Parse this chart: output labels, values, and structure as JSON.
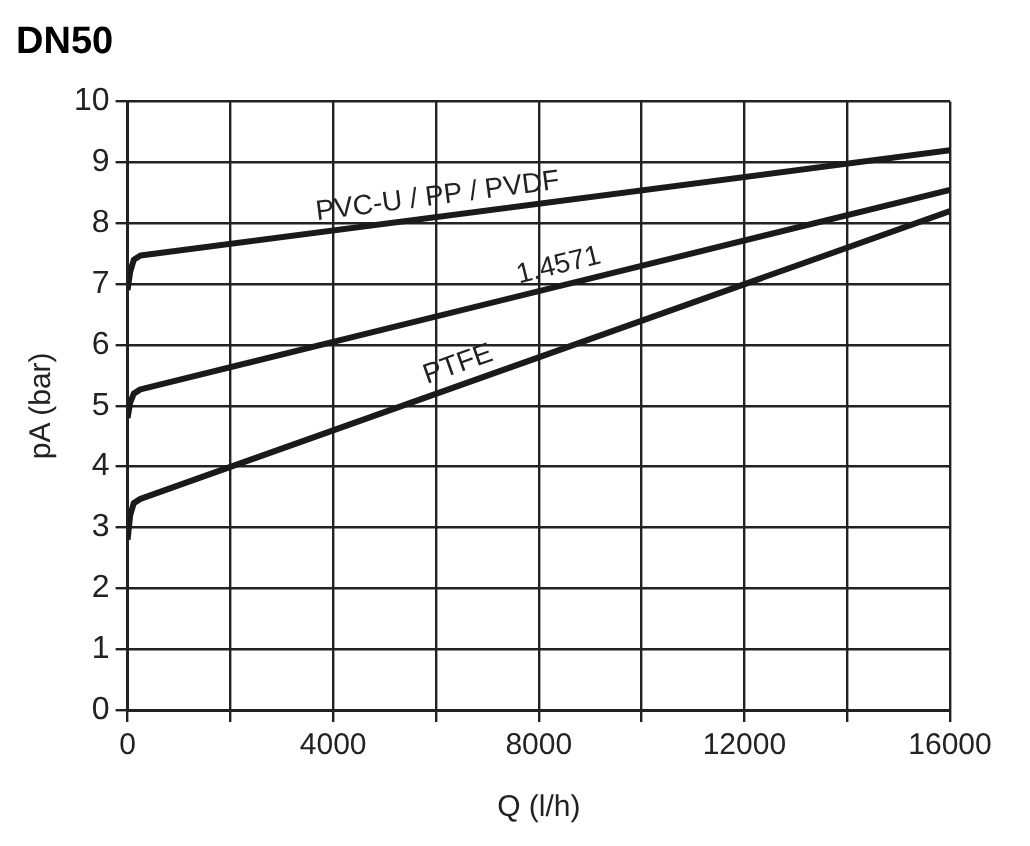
{
  "chart_data": {
    "type": "line",
    "title": "DN50",
    "xlabel": "Q (l/h)",
    "ylabel": "pA (bar)",
    "series": [
      {
        "name": "PVC-U / PP / PVDF",
        "color": "#1a1a1a",
        "x": [
          0,
          50,
          120,
          250,
          16000
        ],
        "values": [
          6.9,
          7.2,
          7.4,
          7.47,
          9.2
        ]
      },
      {
        "name": "1.4571",
        "color": "#1a1a1a",
        "x": [
          0,
          50,
          120,
          250,
          16000
        ],
        "values": [
          4.8,
          5.05,
          5.2,
          5.27,
          8.55
        ]
      },
      {
        "name": "PTFE",
        "color": "#1a1a1a",
        "x": [
          0,
          50,
          120,
          250,
          16000
        ],
        "values": [
          2.8,
          3.2,
          3.4,
          3.47,
          8.2
        ]
      }
    ],
    "xlim": [
      0,
      16000
    ],
    "ylim": [
      0,
      10
    ],
    "xticks": [
      0,
      {
        "value": 2000,
        "label": null
      },
      4000,
      {
        "value": 6000,
        "label": null
      },
      8000,
      {
        "value": 10000,
        "label": null
      },
      12000,
      {
        "value": 14000,
        "label": null
      },
      16000
    ],
    "yticks": [
      0,
      1,
      2,
      3,
      4,
      5,
      6,
      7,
      8,
      9,
      10
    ],
    "grid": true,
    "legend": false,
    "marker": "none",
    "line_style": "solid"
  }
}
